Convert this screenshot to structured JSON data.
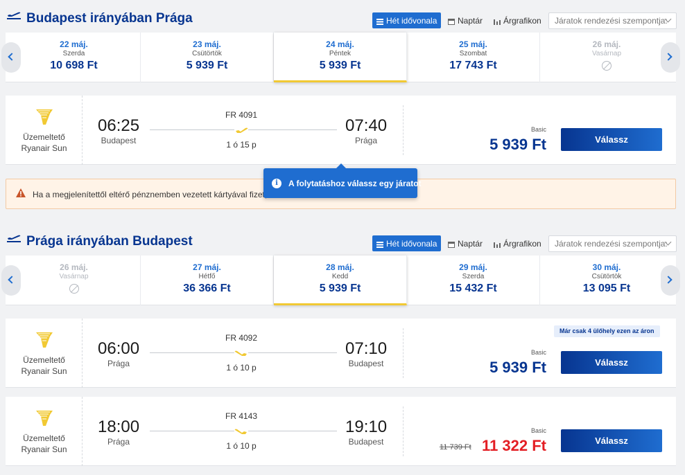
{
  "outbound": {
    "title": "Budapest irányában Prága",
    "view_buttons": [
      "Hét idővonala",
      "Naptár",
      "Árgrafikon"
    ],
    "sort_placeholder": "Járatok rendezési szempontja:",
    "dates": [
      {
        "date": "22 máj.",
        "weekday": "Szerda",
        "price": "10 698 Ft"
      },
      {
        "date": "23 máj.",
        "weekday": "Csütörtök",
        "price": "5 939 Ft"
      },
      {
        "date": "24 máj.",
        "weekday": "Péntek",
        "price": "5 939 Ft"
      },
      {
        "date": "25 máj.",
        "weekday": "Szombat",
        "price": "17 743 Ft"
      },
      {
        "date": "26 máj.",
        "weekday": "Vasárnap",
        "price": ""
      }
    ],
    "flights": [
      {
        "operator_label": "Üzemeltető",
        "operator_name": "Ryanair Sun",
        "dep_time": "06:25",
        "dep_city": "Budapest",
        "flight_no": "FR 4091",
        "duration": "1 ó 15 p",
        "arr_time": "07:40",
        "arr_city": "Prága",
        "fare_type": "Basic",
        "price": "5 939 Ft",
        "select_label": "Válassz"
      }
    ]
  },
  "warning_text": "Ha a megjelenítettől eltérő pénznemben vezetett kártyával fizet, a",
  "tooltip_text": "A folytatáshoz válassz egy járatot",
  "inbound": {
    "title": "Prága irányában Budapest",
    "view_buttons": [
      "Hét idővonala",
      "Naptár",
      "Árgrafikon"
    ],
    "sort_placeholder": "Járatok rendezési szempontja:",
    "dates": [
      {
        "date": "26 máj.",
        "weekday": "Vasárnap",
        "price": ""
      },
      {
        "date": "27 máj.",
        "weekday": "Hétfő",
        "price": "36 366 Ft"
      },
      {
        "date": "28 máj.",
        "weekday": "Kedd",
        "price": "5 939 Ft"
      },
      {
        "date": "29 máj.",
        "weekday": "Szerda",
        "price": "15 432 Ft"
      },
      {
        "date": "30 máj.",
        "weekday": "Csütörtök",
        "price": "13 095 Ft"
      }
    ],
    "flights": [
      {
        "operator_label": "Üzemeltető",
        "operator_name": "Ryanair Sun",
        "dep_time": "06:00",
        "dep_city": "Prága",
        "flight_no": "FR 4092",
        "duration": "1 ó 10 p",
        "arr_time": "07:10",
        "arr_city": "Budapest",
        "fare_type": "Basic",
        "price": "5 939 Ft",
        "seats_badge": "Már csak 4 ülőhely ezen az áron",
        "select_label": "Válassz"
      },
      {
        "operator_label": "Üzemeltető",
        "operator_name": "Ryanair Sun",
        "dep_time": "18:00",
        "dep_city": "Prága",
        "flight_no": "FR 4143",
        "duration": "1 ó 10 p",
        "arr_time": "19:10",
        "arr_city": "Budapest",
        "fare_type": "Basic",
        "old_price": "11 739 Ft",
        "price": "11 322 Ft",
        "select_label": "Válassz"
      }
    ]
  },
  "colors": {
    "brand_blue": "#073590",
    "accent_blue": "#1f6dd0",
    "yellow": "#f1c933",
    "sale_red": "#e31e24"
  }
}
